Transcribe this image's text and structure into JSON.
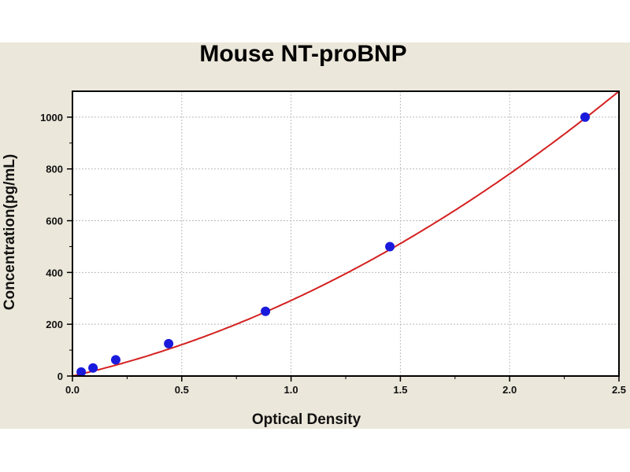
{
  "chart_data": {
    "type": "scatter",
    "title": "Mouse NT-proBNP",
    "xlabel": "Optical Density",
    "ylabel": "Concentration(pg/mL)",
    "xlim": [
      0,
      2.5
    ],
    "ylim": [
      0,
      1100
    ],
    "xticks": [
      "0.0",
      "0.5",
      "1.0",
      "1.5",
      "2.0",
      "2.5"
    ],
    "yticks": [
      "0",
      "200",
      "400",
      "600",
      "800",
      "1000"
    ],
    "grid": true,
    "points": [
      {
        "x": 0.04,
        "y": 15.6
      },
      {
        "x": 0.094,
        "y": 31.2
      },
      {
        "x": 0.198,
        "y": 62.5
      },
      {
        "x": 0.44,
        "y": 125
      },
      {
        "x": 0.883,
        "y": 250
      },
      {
        "x": 1.452,
        "y": 500
      },
      {
        "x": 2.345,
        "y": 1000
      }
    ],
    "fit": {
      "type": "quadratic",
      "a": 193,
      "b": 98.8
    },
    "colors": {
      "points": "#1a1adc",
      "curve": "#d42020",
      "panel": "#ebe7da"
    }
  }
}
